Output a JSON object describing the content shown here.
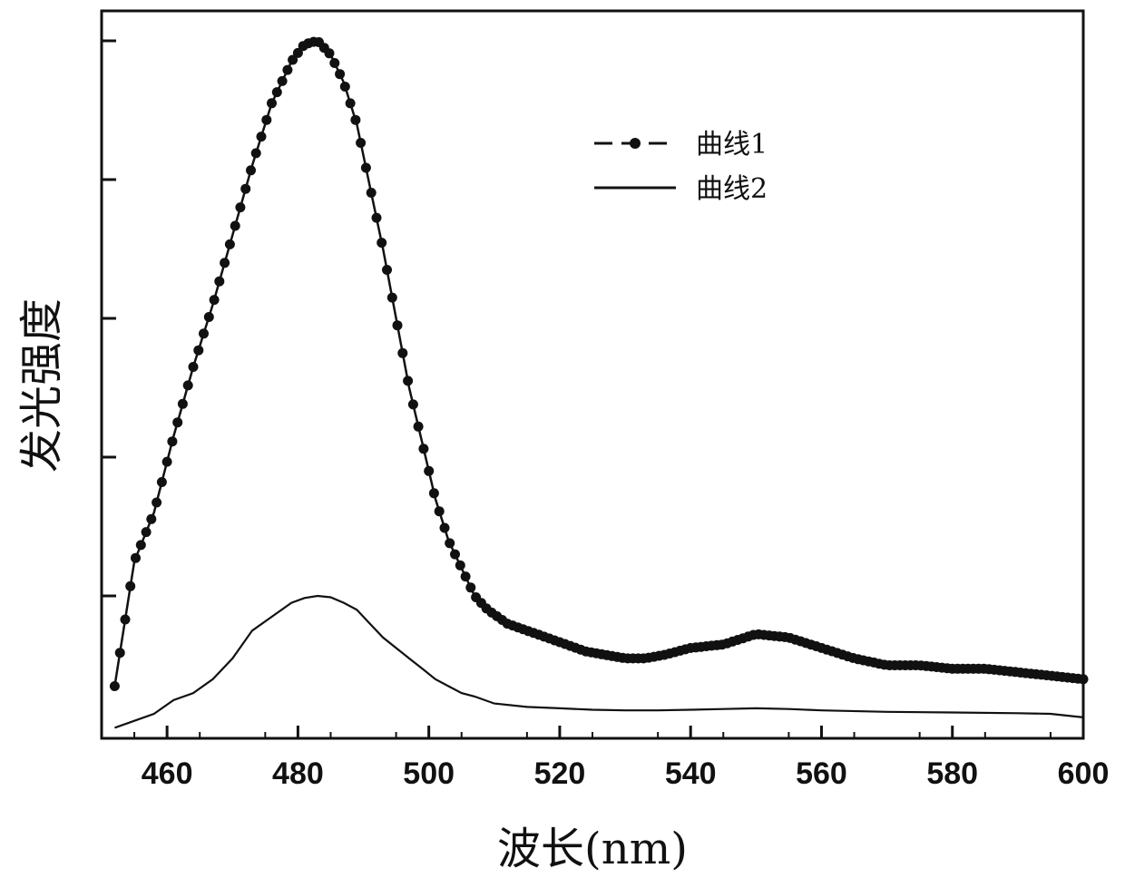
{
  "chart_data": {
    "type": "line",
    "title": "",
    "xlabel": "波长(nm)",
    "ylabel": "发光强度",
    "xlim": [
      450,
      600
    ],
    "ylim": [
      0,
      1.0
    ],
    "grid": false,
    "legend_position": "top-right",
    "x_ticks": [
      460,
      480,
      500,
      520,
      540,
      560,
      580,
      600
    ],
    "x_tick_labels": [
      "460",
      "480",
      "500",
      "520",
      "540",
      "560",
      "580",
      "600"
    ],
    "y_ticks": [
      0.2,
      0.4,
      0.6,
      0.8,
      1.0
    ],
    "y_tick_labels": [
      "",
      "",
      "",
      "",
      ""
    ],
    "series": [
      {
        "name": "曲线1",
        "style": "dashed-with-circle-markers",
        "color": "#111111",
        "x": [
          452,
          455,
          458,
          461,
          464,
          467,
          470,
          473,
          476,
          479,
          481,
          483,
          485,
          487,
          489,
          491,
          493,
          495,
          497,
          499,
          501,
          503,
          505,
          507,
          509,
          512,
          515,
          518,
          521,
          524,
          527,
          530,
          533,
          536,
          540,
          545,
          550,
          555,
          560,
          565,
          570,
          575,
          580,
          585,
          590,
          595,
          600
        ],
        "y": [
          0.07,
          0.25,
          0.32,
          0.43,
          0.53,
          0.62,
          0.72,
          0.82,
          0.91,
          0.97,
          0.995,
          1.0,
          0.98,
          0.94,
          0.88,
          0.79,
          0.7,
          0.6,
          0.5,
          0.42,
          0.34,
          0.28,
          0.24,
          0.2,
          0.18,
          0.16,
          0.15,
          0.14,
          0.13,
          0.12,
          0.115,
          0.11,
          0.11,
          0.115,
          0.125,
          0.13,
          0.145,
          0.14,
          0.125,
          0.11,
          0.1,
          0.1,
          0.095,
          0.095,
          0.09,
          0.085,
          0.08
        ]
      },
      {
        "name": "曲线2",
        "style": "solid",
        "color": "#111111",
        "x": [
          452,
          455,
          458,
          461,
          464,
          467,
          470,
          473,
          476,
          479,
          481,
          483,
          485,
          487,
          489,
          491,
          493,
          495,
          497,
          499,
          501,
          503,
          505,
          507,
          510,
          515,
          520,
          525,
          530,
          535,
          540,
          545,
          550,
          555,
          560,
          570,
          580,
          590,
          595,
          600
        ],
        "y": [
          0.01,
          0.02,
          0.03,
          0.05,
          0.06,
          0.08,
          0.11,
          0.15,
          0.17,
          0.19,
          0.197,
          0.2,
          0.198,
          0.19,
          0.18,
          0.16,
          0.14,
          0.125,
          0.11,
          0.095,
          0.08,
          0.07,
          0.06,
          0.055,
          0.045,
          0.04,
          0.038,
          0.036,
          0.035,
          0.035,
          0.036,
          0.037,
          0.038,
          0.037,
          0.035,
          0.033,
          0.032,
          0.031,
          0.03,
          0.025
        ]
      }
    ],
    "legend": [
      {
        "label": "曲线1",
        "marker": "circle",
        "line": "dashed"
      },
      {
        "label": "曲线2",
        "marker": "none",
        "line": "solid"
      }
    ]
  }
}
